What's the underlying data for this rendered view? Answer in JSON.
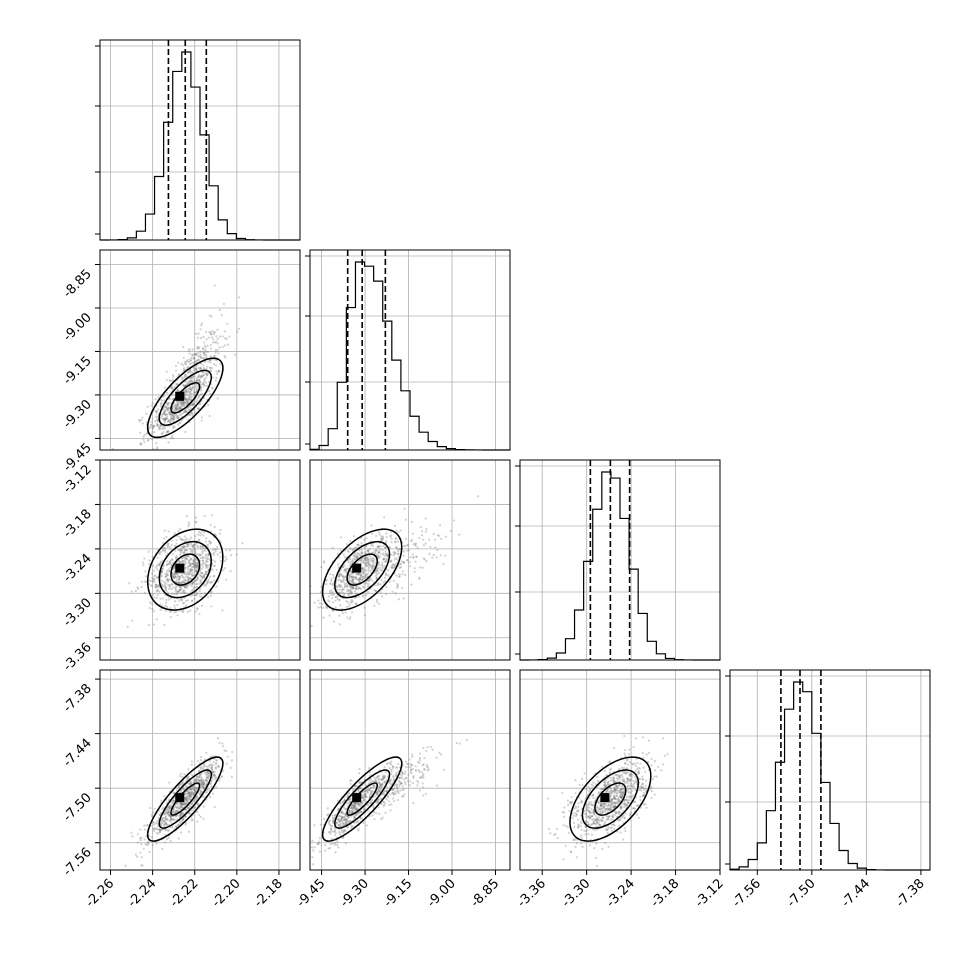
{
  "chart_data": {
    "type": "corner",
    "grid": true,
    "parameters": [
      {
        "index": 0,
        "range": [
          -2.265,
          -2.17
        ],
        "ticks": [
          "-2.26",
          "-2.24",
          "-2.22",
          "-2.20",
          "-2.18"
        ],
        "tick_values": [
          -2.26,
          -2.24,
          -2.22,
          -2.2,
          -2.18
        ],
        "quantiles": [
          -2.2325,
          -2.2245,
          -2.2145
        ],
        "mean": -2.2245,
        "sigma": 0.0085
      },
      {
        "index": 1,
        "range": [
          -9.49,
          -8.8
        ],
        "ticks": [
          "-9.45",
          "-9.30",
          "-9.15",
          "-9.00",
          "-8.85"
        ],
        "tick_values": [
          -9.45,
          -9.3,
          -9.15,
          -9.0,
          -8.85
        ],
        "quantiles": [
          -9.36,
          -9.31,
          -9.23
        ],
        "mean": -9.31,
        "sigma": 0.065
      },
      {
        "index": 2,
        "range": [
          -3.39,
          -3.12
        ],
        "ticks": [
          "-3.12",
          "-3.18",
          "-3.24",
          "-3.30",
          "-3.36"
        ],
        "tick_values": [
          -3.12,
          -3.18,
          -3.24,
          -3.3,
          -3.36
        ],
        "quantiles": [
          -3.295,
          -3.268,
          -3.242
        ],
        "mean": -3.268,
        "sigma": 0.026
      },
      {
        "index": 3,
        "range": [
          -7.59,
          -7.37
        ],
        "ticks": [
          "-7.38",
          "-7.44",
          "-7.50",
          "-7.56"
        ],
        "tick_values": [
          -7.38,
          -7.44,
          -7.5,
          -7.56
        ],
        "quantiles": [
          -7.534,
          -7.513,
          -7.49
        ],
        "mean": -7.512,
        "sigma": 0.022
      }
    ],
    "x_tick_labels": [
      [
        "-2.26",
        "-2.24",
        "-2.22",
        "-2.20",
        "-2.18"
      ],
      [
        "-9.45",
        "-9.30",
        "-9.15",
        "-9.00",
        "-8.85"
      ],
      [
        "-3.36",
        "-3.30",
        "-3.24",
        "-3.18",
        "-3.12"
      ],
      [
        "-7.56",
        "-7.50",
        "-7.44",
        "-7.38"
      ]
    ],
    "y_tick_labels": [
      [],
      [
        "-8.85",
        "-9.00",
        "-9.15",
        "-9.30",
        "-9.45"
      ],
      [
        "-3.12",
        "-3.18",
        "-3.24",
        "-3.30",
        "-3.36"
      ],
      [
        "-7.38",
        "-7.44",
        "-7.50",
        "-7.56"
      ]
    ],
    "correlations": {
      "1_0": 0.75,
      "2_0": 0.3,
      "2_1": 0.55,
      "3_0": 0.85,
      "3_1": 0.85,
      "3_2": 0.55
    }
  }
}
